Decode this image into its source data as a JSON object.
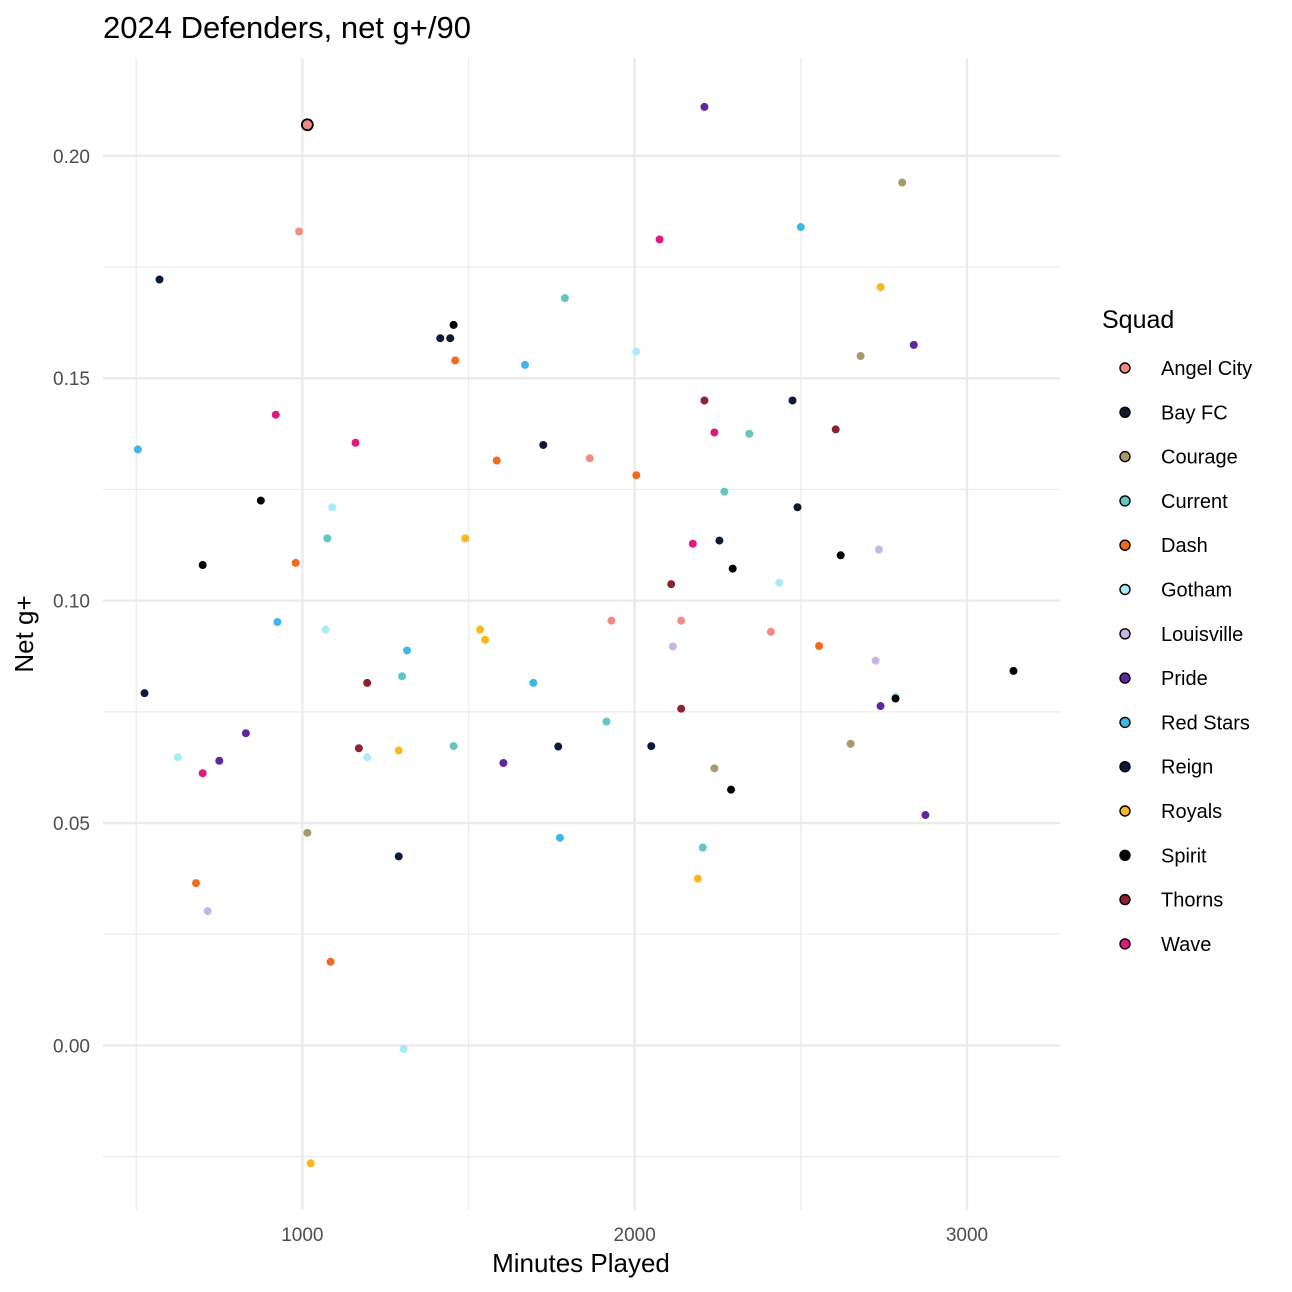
{
  "chart_data": {
    "type": "scatter",
    "title": "2024 Defenders, net g+/90",
    "xlabel": "Minutes Played",
    "ylabel": "Net g+",
    "xlim": [
      400,
      3280
    ],
    "ylim": [
      -0.037,
      0.222
    ],
    "x_ticks": [
      1000,
      2000,
      3000
    ],
    "x_tick_labels": [
      "1000",
      "2000",
      "3000"
    ],
    "y_ticks": [
      0.0,
      0.05,
      0.1,
      0.15,
      0.2
    ],
    "y_tick_labels": [
      "0.00",
      "0.05",
      "0.10",
      "0.15",
      "0.20"
    ],
    "grid": true,
    "legend": {
      "title": "Squad",
      "position": "right",
      "entries": [
        {
          "name": "Angel City",
          "color": "#F28B82"
        },
        {
          "name": "Bay FC",
          "color": "#0D1B2A"
        },
        {
          "name": "Courage",
          "color": "#A89968"
        },
        {
          "name": "Current",
          "color": "#62C6C4"
        },
        {
          "name": "Dash",
          "color": "#F26A1B"
        },
        {
          "name": "Gotham",
          "color": "#A8ECF5"
        },
        {
          "name": "Louisville",
          "color": "#C9B5E4"
        },
        {
          "name": "Pride",
          "color": "#60269E"
        },
        {
          "name": "Red Stars",
          "color": "#41B6E6"
        },
        {
          "name": "Reign",
          "color": "#0B1A3D"
        },
        {
          "name": "Royals",
          "color": "#FDB71A"
        },
        {
          "name": "Spirit",
          "color": "#000000"
        },
        {
          "name": "Thorns",
          "color": "#8B2332"
        },
        {
          "name": "Wave",
          "color": "#E0197D"
        }
      ]
    },
    "highlight": {
      "squad": "Angel City",
      "x": 1015,
      "y": 0.207
    },
    "series": [
      {
        "name": "Angel City",
        "points": [
          [
            990,
            0.183
          ],
          [
            1865,
            0.132
          ],
          [
            1930,
            0.0955
          ],
          [
            2140,
            0.0955
          ],
          [
            2410,
            0.093
          ]
        ]
      },
      {
        "name": "Bay FC",
        "points": [
          [
            1445,
            0.159
          ],
          [
            1725,
            0.135
          ],
          [
            2255,
            0.1135
          ],
          [
            2490,
            0.121
          ]
        ]
      },
      {
        "name": "Courage",
        "points": [
          [
            1015,
            0.0478
          ],
          [
            2240,
            0.0623
          ],
          [
            2650,
            0.0678
          ],
          [
            2680,
            0.155
          ],
          [
            2805,
            0.194
          ]
        ]
      },
      {
        "name": "Current",
        "points": [
          [
            1075,
            0.114
          ],
          [
            1300,
            0.083
          ],
          [
            1455,
            0.0673
          ],
          [
            1790,
            0.168
          ],
          [
            1915,
            0.0728
          ],
          [
            2205,
            0.0445
          ],
          [
            2270,
            0.1245
          ],
          [
            2345,
            0.1375
          ]
        ]
      },
      {
        "name": "Dash",
        "points": [
          [
            680,
            0.0365
          ],
          [
            980,
            0.1085
          ],
          [
            1085,
            0.0188
          ],
          [
            1460,
            0.154
          ],
          [
            1585,
            0.1315
          ],
          [
            2005,
            0.1282
          ],
          [
            2555,
            0.0898
          ]
        ]
      },
      {
        "name": "Gotham",
        "points": [
          [
            625,
            0.0648
          ],
          [
            1070,
            0.0935
          ],
          [
            1090,
            0.121
          ],
          [
            1195,
            0.0648
          ],
          [
            1305,
            -0.0008
          ],
          [
            2005,
            0.156
          ],
          [
            2435,
            0.104
          ],
          [
            2785,
            0.0785
          ]
        ]
      },
      {
        "name": "Louisville",
        "points": [
          [
            715,
            0.0302
          ],
          [
            2115,
            0.0897
          ],
          [
            2725,
            0.0865
          ],
          [
            2735,
            0.1115
          ]
        ]
      },
      {
        "name": "Pride",
        "points": [
          [
            750,
            0.064
          ],
          [
            830,
            0.0702
          ],
          [
            1605,
            0.0635
          ],
          [
            2210,
            0.211
          ],
          [
            2740,
            0.0763
          ],
          [
            2840,
            0.1575
          ],
          [
            2875,
            0.0518
          ]
        ]
      },
      {
        "name": "Red Stars",
        "points": [
          [
            505,
            0.134
          ],
          [
            925,
            0.0952
          ],
          [
            1315,
            0.0888
          ],
          [
            1670,
            0.153
          ],
          [
            1695,
            0.0815
          ],
          [
            1775,
            0.0467
          ],
          [
            2500,
            0.184
          ]
        ]
      },
      {
        "name": "Reign",
        "points": [
          [
            525,
            0.0792
          ],
          [
            570,
            0.1722
          ],
          [
            1290,
            0.0425
          ],
          [
            1415,
            0.159
          ],
          [
            1770,
            0.0672
          ],
          [
            2050,
            0.0673
          ],
          [
            2475,
            0.145
          ]
        ]
      },
      {
        "name": "Royals",
        "points": [
          [
            1025,
            -0.0265
          ],
          [
            1290,
            0.0663
          ],
          [
            1490,
            0.114
          ],
          [
            1535,
            0.0935
          ],
          [
            1550,
            0.0912
          ],
          [
            2190,
            0.0375
          ],
          [
            2740,
            0.1705
          ]
        ]
      },
      {
        "name": "Spirit",
        "points": [
          [
            700,
            0.108
          ],
          [
            875,
            0.1225
          ],
          [
            1455,
            0.162
          ],
          [
            2290,
            0.0575
          ],
          [
            2295,
            0.1072
          ],
          [
            2620,
            0.1102
          ],
          [
            2785,
            0.078
          ],
          [
            3140,
            0.0842
          ]
        ]
      },
      {
        "name": "Thorns",
        "points": [
          [
            1170,
            0.0668
          ],
          [
            1195,
            0.0815
          ],
          [
            2110,
            0.1037
          ],
          [
            2140,
            0.0757
          ],
          [
            2210,
            0.145
          ],
          [
            2605,
            0.1385
          ]
        ]
      },
      {
        "name": "Wave",
        "points": [
          [
            700,
            0.0612
          ],
          [
            920,
            0.1418
          ],
          [
            1160,
            0.1355
          ],
          [
            2075,
            0.1812
          ],
          [
            2175,
            0.1128
          ],
          [
            2240,
            0.1378
          ]
        ]
      }
    ]
  }
}
